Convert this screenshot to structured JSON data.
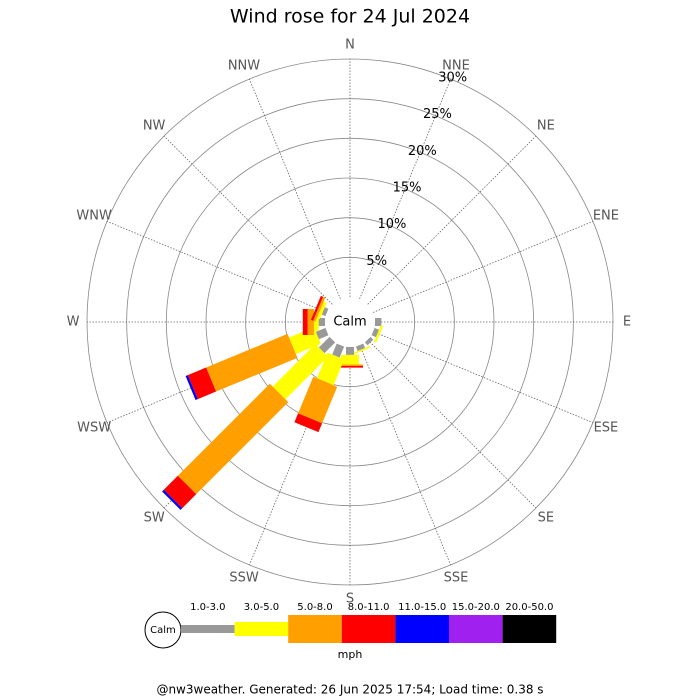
{
  "chart_data": {
    "type": "wind-rose",
    "title": "Wind rose for 24 Jul 2024",
    "directions": [
      "N",
      "NNE",
      "NE",
      "ENE",
      "E",
      "ESE",
      "SE",
      "SSE",
      "S",
      "SSW",
      "SW",
      "WSW",
      "W",
      "WNW",
      "NW",
      "NNW"
    ],
    "center_label": "Calm",
    "unit": "mph",
    "rlim": [
      0,
      30
    ],
    "rticks": [
      {
        "value": 5,
        "label": "5%"
      },
      {
        "value": 10,
        "label": "10%"
      },
      {
        "value": 15,
        "label": "15%"
      },
      {
        "value": 20,
        "label": "20%"
      },
      {
        "value": 25,
        "label": "25%"
      },
      {
        "value": 30,
        "label": "30%"
      }
    ],
    "series": [
      {
        "name": "1.0-3.0",
        "color": "#999999",
        "values": [
          0,
          0,
          0,
          0,
          0.8,
          0.6,
          0.5,
          0.6,
          1.0,
          1.5,
          1.9,
          1.3,
          0.8,
          0.5,
          0,
          0
        ]
      },
      {
        "name": "3.0-5.0",
        "color": "#ffff00",
        "values": [
          0,
          0,
          0,
          0,
          0,
          0.3,
          0,
          0.2,
          1.2,
          3.5,
          7.6,
          3.4,
          0.6,
          0.4,
          0,
          0
        ]
      },
      {
        "name": "5.0-8.0",
        "color": "#ffa000",
        "values": [
          0,
          0,
          0,
          0,
          0,
          0,
          0,
          0,
          0.2,
          5.0,
          16.4,
          11.1,
          0.8,
          0.3,
          0,
          0
        ]
      },
      {
        "name": "8.0-11.0",
        "color": "#ff0000",
        "values": [
          0,
          0,
          0,
          0,
          0,
          0,
          0,
          0,
          0.2,
          1.2,
          2.5,
          2.5,
          0.6,
          0.3,
          0,
          0
        ]
      },
      {
        "name": "11.0-15.0",
        "color": "#0000ff",
        "values": [
          0,
          0,
          0,
          0,
          0,
          0,
          0,
          0,
          0,
          0,
          0.3,
          0.3,
          0,
          0,
          0,
          0
        ]
      },
      {
        "name": "15.0-20.0",
        "color": "#a020f0",
        "values": [
          0,
          0,
          0,
          0,
          0,
          0,
          0,
          0,
          0,
          0,
          0,
          0,
          0,
          0,
          0,
          0
        ]
      },
      {
        "name": "20.0-50.0",
        "color": "#000000",
        "values": [
          0,
          0,
          0,
          0,
          0,
          0,
          0,
          0,
          0,
          0,
          0,
          0,
          0,
          0,
          0,
          0
        ]
      }
    ],
    "footer": "@nw3weather. Generated: 26 Jun 2025 17:54; Load time: 0.38 s"
  }
}
